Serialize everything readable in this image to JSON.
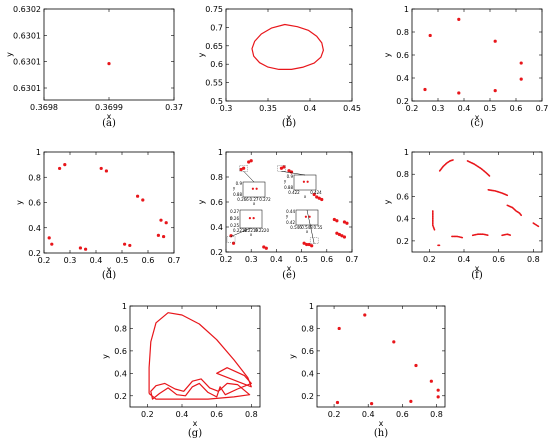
{
  "chart_data": [
    {
      "panel": "(a)",
      "type": "scatter",
      "xlabel": "x",
      "ylabel": "y",
      "xlim": [
        0.3698,
        0.37
      ],
      "ylim": [
        0.6301,
        0.6302
      ],
      "xticks": [
        "0.3698",
        "0.3699",
        "0.37"
      ],
      "yticks": [
        "0.6301",
        "0.6301",
        "0.6301",
        "0.6302"
      ],
      "points": [
        [
          0.3699,
          0.63014
        ]
      ]
    },
    {
      "panel": "(b)",
      "type": "line",
      "xlabel": "x",
      "ylabel": "y",
      "xlim": [
        0.3,
        0.45
      ],
      "ylim": [
        0.5,
        0.75
      ],
      "xticks": [
        "0.3",
        "0.35",
        "0.4",
        "0.45"
      ],
      "yticks": [
        "0.5",
        "0.55",
        "0.6",
        "0.65",
        "0.7",
        "0.75"
      ],
      "closed": true,
      "points": [
        [
          0.37,
          0.708
        ],
        [
          0.385,
          0.702
        ],
        [
          0.398,
          0.692
        ],
        [
          0.408,
          0.676
        ],
        [
          0.414,
          0.658
        ],
        [
          0.416,
          0.638
        ],
        [
          0.413,
          0.619
        ],
        [
          0.405,
          0.603
        ],
        [
          0.392,
          0.592
        ],
        [
          0.378,
          0.586
        ],
        [
          0.363,
          0.586
        ],
        [
          0.35,
          0.592
        ],
        [
          0.34,
          0.604
        ],
        [
          0.333,
          0.622
        ],
        [
          0.331,
          0.642
        ],
        [
          0.334,
          0.662
        ],
        [
          0.342,
          0.682
        ],
        [
          0.354,
          0.698
        ]
      ]
    },
    {
      "panel": "(c)",
      "type": "scatter",
      "xlabel": "x",
      "ylabel": "y",
      "xlim": [
        0.2,
        0.7
      ],
      "ylim": [
        0.2,
        1.0
      ],
      "xticks": [
        "0.2",
        "0.3",
        "0.4",
        "0.5",
        "0.6",
        "0.7"
      ],
      "yticks": [
        "0.2",
        "0.4",
        "0.6",
        "0.8",
        "1"
      ],
      "points": [
        [
          0.27,
          0.77
        ],
        [
          0.38,
          0.91
        ],
        [
          0.52,
          0.72
        ],
        [
          0.62,
          0.53
        ],
        [
          0.62,
          0.39
        ],
        [
          0.52,
          0.29
        ],
        [
          0.38,
          0.27
        ],
        [
          0.25,
          0.3
        ]
      ]
    },
    {
      "panel": "(d)",
      "type": "scatter",
      "xlabel": "x",
      "ylabel": "y",
      "xlim": [
        0.2,
        0.7
      ],
      "ylim": [
        0.2,
        1.0
      ],
      "xticks": [
        "0.2",
        "0.3",
        "0.4",
        "0.5",
        "0.6",
        "0.7"
      ],
      "yticks": [
        "0.2",
        "0.4",
        "0.6",
        "0.8",
        "1"
      ],
      "points": [
        [
          0.26,
          0.87
        ],
        [
          0.28,
          0.9
        ],
        [
          0.42,
          0.87
        ],
        [
          0.44,
          0.85
        ],
        [
          0.56,
          0.65
        ],
        [
          0.58,
          0.62
        ],
        [
          0.65,
          0.46
        ],
        [
          0.67,
          0.44
        ],
        [
          0.64,
          0.34
        ],
        [
          0.66,
          0.33
        ],
        [
          0.51,
          0.27
        ],
        [
          0.53,
          0.26
        ],
        [
          0.34,
          0.24
        ],
        [
          0.36,
          0.23
        ],
        [
          0.22,
          0.32
        ],
        [
          0.23,
          0.27
        ]
      ]
    },
    {
      "panel": "(e)",
      "type": "scatter",
      "xlabel": "x",
      "ylabel": "y",
      "xlim": [
        0.2,
        0.7
      ],
      "ylim": [
        0.2,
        1.0
      ],
      "xticks": [
        "0.2",
        "0.3",
        "0.4",
        "0.5",
        "0.6",
        "0.7"
      ],
      "yticks": [
        "0.2",
        "0.4",
        "0.6",
        "0.8",
        "1"
      ],
      "points": [
        [
          0.27,
          0.87
        ],
        [
          0.3,
          0.93
        ],
        [
          0.42,
          0.87
        ],
        [
          0.45,
          0.85
        ],
        [
          0.55,
          0.66
        ],
        [
          0.57,
          0.63
        ],
        [
          0.63,
          0.46
        ],
        [
          0.67,
          0.44
        ],
        [
          0.64,
          0.35
        ],
        [
          0.66,
          0.33
        ],
        [
          0.51,
          0.27
        ],
        [
          0.53,
          0.26
        ],
        [
          0.35,
          0.24
        ],
        [
          0.36,
          0.23
        ],
        [
          0.22,
          0.33
        ],
        [
          0.23,
          0.27
        ],
        [
          0.26,
          0.86
        ],
        [
          0.29,
          0.92
        ],
        [
          0.43,
          0.88
        ],
        [
          0.46,
          0.84
        ],
        [
          0.56,
          0.64
        ],
        [
          0.58,
          0.62
        ],
        [
          0.64,
          0.45
        ],
        [
          0.68,
          0.43
        ],
        [
          0.65,
          0.34
        ],
        [
          0.67,
          0.32
        ],
        [
          0.52,
          0.26
        ],
        [
          0.54,
          0.25
        ]
      ],
      "insets": [
        {
          "xticks": [
            "0.266",
            "0.27",
            "0.272"
          ],
          "yticks": [
            "0.9",
            "0.88"
          ],
          "xlabel": "x",
          "ylabel": "y"
        },
        {
          "xticks": [
            "0.422",
            "0.424"
          ],
          "yticks": [
            "0.9",
            "0.88"
          ],
          "xlabel": "x",
          "ylabel": "y"
        },
        {
          "xticks": [
            "0.2218",
            "0.2219",
            "0.2220"
          ],
          "yticks": [
            "0.27",
            "0.26",
            "0.25"
          ],
          "xlabel": "x",
          "ylabel": "y"
        },
        {
          "xticks": [
            "0.546",
            "0.548",
            "0.55"
          ],
          "yticks": [
            "0.44",
            "0.42"
          ],
          "xlabel": "x",
          "ylabel": "y"
        }
      ]
    },
    {
      "panel": "(f)",
      "type": "scatter",
      "xlabel": "x",
      "ylabel": "y",
      "xlim": [
        0.1,
        0.85
      ],
      "ylim": [
        0.1,
        1.0
      ],
      "xticks": [
        "0.2",
        "0.4",
        "0.6",
        "0.8"
      ],
      "yticks": [
        "0.2",
        "0.4",
        "0.6",
        "0.8",
        "1"
      ],
      "segments": [
        [
          [
            0.26,
            0.83
          ],
          [
            0.28,
            0.87
          ],
          [
            0.3,
            0.9
          ],
          [
            0.32,
            0.92
          ],
          [
            0.34,
            0.93
          ]
        ],
        [
          [
            0.42,
            0.92
          ],
          [
            0.46,
            0.89
          ],
          [
            0.5,
            0.85
          ],
          [
            0.53,
            0.81
          ],
          [
            0.55,
            0.78
          ]
        ],
        [
          [
            0.54,
            0.66
          ],
          [
            0.58,
            0.65
          ],
          [
            0.62,
            0.63
          ],
          [
            0.65,
            0.61
          ]
        ],
        [
          [
            0.65,
            0.52
          ],
          [
            0.68,
            0.5
          ],
          [
            0.7,
            0.47
          ],
          [
            0.72,
            0.45
          ],
          [
            0.73,
            0.43
          ]
        ],
        [
          [
            0.8,
            0.36
          ],
          [
            0.82,
            0.34
          ],
          [
            0.83,
            0.33
          ]
        ],
        [
          [
            0.22,
            0.47
          ],
          [
            0.22,
            0.43
          ],
          [
            0.22,
            0.38
          ],
          [
            0.22,
            0.34
          ],
          [
            0.23,
            0.3
          ]
        ],
        [
          [
            0.33,
            0.24
          ],
          [
            0.36,
            0.24
          ],
          [
            0.39,
            0.23
          ]
        ],
        [
          [
            0.45,
            0.25
          ],
          [
            0.48,
            0.26
          ],
          [
            0.51,
            0.26
          ],
          [
            0.54,
            0.25
          ]
        ],
        [
          [
            0.62,
            0.25
          ],
          [
            0.65,
            0.26
          ],
          [
            0.67,
            0.25
          ]
        ],
        [
          [
            0.25,
            0.16
          ],
          [
            0.26,
            0.16
          ]
        ]
      ]
    },
    {
      "panel": "(g)",
      "type": "line",
      "xlabel": "x",
      "ylabel": "y",
      "xlim": [
        0.1,
        0.85
      ],
      "ylim": [
        0.1,
        1.0
      ],
      "xticks": [
        "0.2",
        "0.4",
        "0.6",
        "0.8"
      ],
      "yticks": [
        "0.2",
        "0.4",
        "0.6",
        "0.8",
        "1"
      ],
      "points": [
        [
          0.21,
          0.22
        ],
        [
          0.21,
          0.45
        ],
        [
          0.22,
          0.68
        ],
        [
          0.25,
          0.85
        ],
        [
          0.32,
          0.94
        ],
        [
          0.4,
          0.92
        ],
        [
          0.5,
          0.84
        ],
        [
          0.6,
          0.7
        ],
        [
          0.7,
          0.52
        ],
        [
          0.78,
          0.36
        ],
        [
          0.8,
          0.28
        ],
        [
          0.7,
          0.34
        ],
        [
          0.6,
          0.4
        ],
        [
          0.66,
          0.45
        ],
        [
          0.76,
          0.38
        ],
        [
          0.8,
          0.31
        ],
        [
          0.72,
          0.26
        ],
        [
          0.65,
          0.21
        ],
        [
          0.62,
          0.28
        ],
        [
          0.6,
          0.19
        ],
        [
          0.55,
          0.23
        ],
        [
          0.5,
          0.31
        ],
        [
          0.46,
          0.28
        ],
        [
          0.42,
          0.2
        ],
        [
          0.37,
          0.21
        ],
        [
          0.32,
          0.27
        ],
        [
          0.27,
          0.22
        ],
        [
          0.23,
          0.17
        ],
        [
          0.22,
          0.24
        ],
        [
          0.25,
          0.29
        ],
        [
          0.3,
          0.31
        ],
        [
          0.36,
          0.26
        ],
        [
          0.41,
          0.24
        ],
        [
          0.46,
          0.33
        ],
        [
          0.51,
          0.35
        ],
        [
          0.56,
          0.27
        ],
        [
          0.61,
          0.24
        ],
        [
          0.66,
          0.31
        ],
        [
          0.72,
          0.3
        ],
        [
          0.79,
          0.21
        ],
        [
          0.7,
          0.19
        ],
        [
          0.55,
          0.17
        ],
        [
          0.4,
          0.17
        ],
        [
          0.25,
          0.17
        ],
        [
          0.21,
          0.22
        ]
      ]
    },
    {
      "panel": "(h)",
      "type": "scatter",
      "xlabel": "x",
      "ylabel": "y",
      "xlim": [
        0.1,
        0.85
      ],
      "ylim": [
        0.1,
        1.0
      ],
      "xticks": [
        "0.2",
        "0.4",
        "0.6",
        "0.8"
      ],
      "yticks": [
        "0.2",
        "0.4",
        "0.6",
        "0.8",
        "1"
      ],
      "points": [
        [
          0.23,
          0.8
        ],
        [
          0.38,
          0.92
        ],
        [
          0.55,
          0.68
        ],
        [
          0.68,
          0.47
        ],
        [
          0.77,
          0.33
        ],
        [
          0.81,
          0.25
        ],
        [
          0.81,
          0.19
        ],
        [
          0.65,
          0.15
        ],
        [
          0.42,
          0.13
        ],
        [
          0.22,
          0.14
        ]
      ]
    }
  ]
}
